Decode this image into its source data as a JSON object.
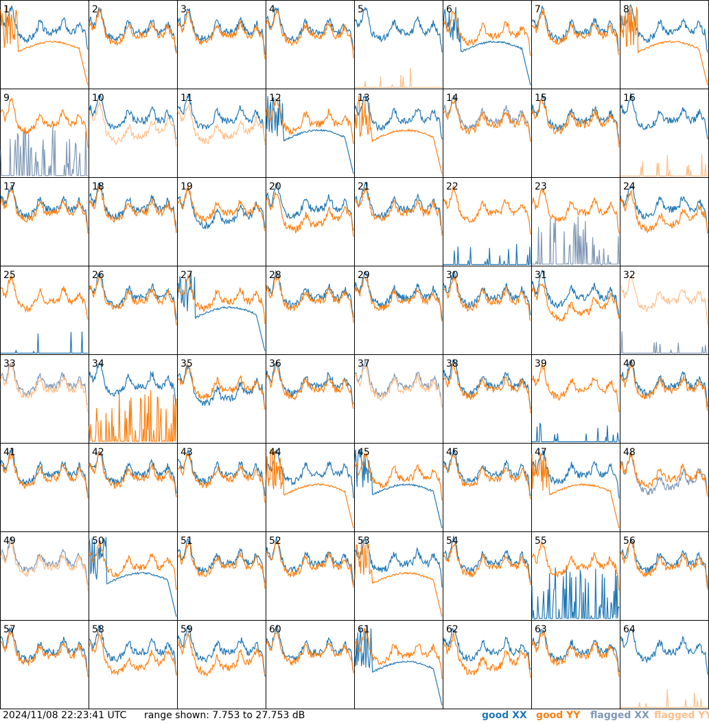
{
  "colors": {
    "good_xx": "#1f77b4",
    "good_yy": "#ff7f0e",
    "flagged_xx": "#7f97b4",
    "flagged_yy": "#ffbf8a",
    "frame": "#000000",
    "background": "#ffffff"
  },
  "footer": {
    "timestamp": "2024/11/08 22:23:41 UTC",
    "range_text": "range shown: 7.753 to 27.753 dB",
    "legend": {
      "good_xx": "good XX",
      "good_yy": "good YY",
      "flagged_xx": "flagged XX",
      "flagged_yy": "flagged YY"
    }
  },
  "chart_data": {
    "type": "line",
    "layout": "8x8 small multiples",
    "ylim": [
      7.753,
      27.753
    ],
    "yunit": "dB",
    "series_names": [
      "good XX",
      "good YY",
      "flagged XX",
      "flagged YY"
    ],
    "panels": [
      {
        "label": "1",
        "xx": "normal",
        "yy": "rolloff",
        "xx_flagged": false,
        "yy_flagged": false
      },
      {
        "label": "2",
        "xx": "normal",
        "yy": "normal",
        "xx_flagged": false,
        "yy_flagged": false
      },
      {
        "label": "3",
        "xx": "normal",
        "yy": "normal",
        "xx_flagged": false,
        "yy_flagged": false
      },
      {
        "label": "4",
        "xx": "normal",
        "yy": "normal",
        "xx_flagged": false,
        "yy_flagged": false
      },
      {
        "label": "5",
        "xx": "normal",
        "yy": "dead",
        "xx_flagged": false,
        "yy_flagged": true
      },
      {
        "label": "6",
        "xx": "rolloff",
        "yy": "normal",
        "xx_flagged": false,
        "yy_flagged": false
      },
      {
        "label": "7",
        "xx": "normal",
        "yy": "normal",
        "xx_flagged": false,
        "yy_flagged": false
      },
      {
        "label": "8",
        "xx": "normal",
        "yy": "rolloff",
        "xx_flagged": false,
        "yy_flagged": false
      },
      {
        "label": "9",
        "xx": "spiky",
        "yy": "normal",
        "xx_flagged": true,
        "yy_flagged": false
      },
      {
        "label": "10",
        "xx": "normal",
        "yy": "low",
        "xx_flagged": false,
        "yy_flagged": true
      },
      {
        "label": "11",
        "xx": "normal",
        "yy": "low",
        "xx_flagged": false,
        "yy_flagged": true
      },
      {
        "label": "12",
        "xx": "rolloff",
        "yy": "normal",
        "xx_flagged": false,
        "yy_flagged": false
      },
      {
        "label": "13",
        "xx": "normal",
        "yy": "rolloff",
        "xx_flagged": false,
        "yy_flagged": false
      },
      {
        "label": "14",
        "xx": "normal",
        "yy": "normal",
        "xx_flagged": true,
        "yy_flagged": false
      },
      {
        "label": "15",
        "xx": "normal",
        "yy": "normal",
        "xx_flagged": false,
        "yy_flagged": false
      },
      {
        "label": "16",
        "xx": "normal",
        "yy": "dead",
        "xx_flagged": false,
        "yy_flagged": true
      },
      {
        "label": "17",
        "xx": "normal",
        "yy": "normal",
        "xx_flagged": false,
        "yy_flagged": false
      },
      {
        "label": "18",
        "xx": "normal",
        "yy": "normal",
        "xx_flagged": false,
        "yy_flagged": false
      },
      {
        "label": "19",
        "xx": "low",
        "yy": "normal",
        "xx_flagged": false,
        "yy_flagged": false
      },
      {
        "label": "20",
        "xx": "normal",
        "yy": "low",
        "xx_flagged": false,
        "yy_flagged": false
      },
      {
        "label": "21",
        "xx": "normal",
        "yy": "normal",
        "xx_flagged": false,
        "yy_flagged": false
      },
      {
        "label": "22",
        "xx": "dead",
        "yy": "normal",
        "xx_flagged": false,
        "yy_flagged": false
      },
      {
        "label": "23",
        "xx": "spiky",
        "yy": "normal",
        "xx_flagged": true,
        "yy_flagged": false
      },
      {
        "label": "24",
        "xx": "normal",
        "yy": "low",
        "xx_flagged": false,
        "yy_flagged": false
      },
      {
        "label": "25",
        "xx": "dead",
        "yy": "normal",
        "xx_flagged": false,
        "yy_flagged": false
      },
      {
        "label": "26",
        "xx": "normal",
        "yy": "normal",
        "xx_flagged": false,
        "yy_flagged": false
      },
      {
        "label": "27",
        "xx": "rolloff",
        "yy": "normal",
        "xx_flagged": false,
        "yy_flagged": false
      },
      {
        "label": "28",
        "xx": "normal",
        "yy": "normal",
        "xx_flagged": false,
        "yy_flagged": false
      },
      {
        "label": "29",
        "xx": "normal",
        "yy": "normal",
        "xx_flagged": false,
        "yy_flagged": false
      },
      {
        "label": "30",
        "xx": "normal",
        "yy": "normal",
        "xx_flagged": false,
        "yy_flagged": false
      },
      {
        "label": "31",
        "xx": "normal",
        "yy": "low",
        "xx_flagged": false,
        "yy_flagged": false
      },
      {
        "label": "32",
        "xx": "dead",
        "yy": "normal",
        "xx_flagged": true,
        "yy_flagged": true
      },
      {
        "label": "33",
        "xx": "normal",
        "yy": "normal",
        "xx_flagged": true,
        "yy_flagged": true
      },
      {
        "label": "34",
        "xx": "normal",
        "yy": "spiky",
        "xx_flagged": false,
        "yy_flagged": false
      },
      {
        "label": "35",
        "xx": "low",
        "yy": "normal",
        "xx_flagged": false,
        "yy_flagged": false
      },
      {
        "label": "36",
        "xx": "normal",
        "yy": "normal",
        "xx_flagged": false,
        "yy_flagged": false
      },
      {
        "label": "37",
        "xx": "normal",
        "yy": "normal",
        "xx_flagged": true,
        "yy_flagged": true
      },
      {
        "label": "38",
        "xx": "normal",
        "yy": "normal",
        "xx_flagged": false,
        "yy_flagged": false
      },
      {
        "label": "39",
        "xx": "dead",
        "yy": "normal",
        "xx_flagged": false,
        "yy_flagged": false
      },
      {
        "label": "40",
        "xx": "normal",
        "yy": "normal",
        "xx_flagged": false,
        "yy_flagged": false
      },
      {
        "label": "41",
        "xx": "normal",
        "yy": "normal",
        "xx_flagged": false,
        "yy_flagged": false
      },
      {
        "label": "42",
        "xx": "normal",
        "yy": "normal",
        "xx_flagged": false,
        "yy_flagged": false
      },
      {
        "label": "43",
        "xx": "normal",
        "yy": "normal",
        "xx_flagged": false,
        "yy_flagged": false
      },
      {
        "label": "44",
        "xx": "normal",
        "yy": "rolloff",
        "xx_flagged": false,
        "yy_flagged": false
      },
      {
        "label": "45",
        "xx": "rolloff",
        "yy": "normal",
        "xx_flagged": false,
        "yy_flagged": false
      },
      {
        "label": "46",
        "xx": "normal",
        "yy": "normal",
        "xx_flagged": false,
        "yy_flagged": false
      },
      {
        "label": "47",
        "xx": "normal",
        "yy": "rolloff",
        "xx_flagged": false,
        "yy_flagged": false
      },
      {
        "label": "48",
        "xx": "low",
        "yy": "normal",
        "xx_flagged": true,
        "yy_flagged": false
      },
      {
        "label": "49",
        "xx": "normal",
        "yy": "normal",
        "xx_flagged": true,
        "yy_flagged": true
      },
      {
        "label": "50",
        "xx": "rolloff",
        "yy": "normal",
        "xx_flagged": false,
        "yy_flagged": false
      },
      {
        "label": "51",
        "xx": "normal",
        "yy": "normal",
        "xx_flagged": false,
        "yy_flagged": false
      },
      {
        "label": "52",
        "xx": "normal",
        "yy": "normal",
        "xx_flagged": false,
        "yy_flagged": false
      },
      {
        "label": "53",
        "xx": "normal",
        "yy": "rolloff",
        "xx_flagged": false,
        "yy_flagged": false
      },
      {
        "label": "54",
        "xx": "normal",
        "yy": "normal",
        "xx_flagged": false,
        "yy_flagged": false
      },
      {
        "label": "55",
        "xx": "spiky",
        "yy": "normal",
        "xx_flagged": false,
        "yy_flagged": false
      },
      {
        "label": "56",
        "xx": "normal",
        "yy": "normal",
        "xx_flagged": false,
        "yy_flagged": false
      },
      {
        "label": "57",
        "xx": "normal",
        "yy": "normal",
        "xx_flagged": false,
        "yy_flagged": false
      },
      {
        "label": "58",
        "xx": "normal",
        "yy": "low",
        "xx_flagged": false,
        "yy_flagged": false
      },
      {
        "label": "59",
        "xx": "normal",
        "yy": "low",
        "xx_flagged": false,
        "yy_flagged": false
      },
      {
        "label": "60",
        "xx": "normal",
        "yy": "normal",
        "xx_flagged": false,
        "yy_flagged": false
      },
      {
        "label": "61",
        "xx": "rolloff",
        "yy": "normal",
        "xx_flagged": false,
        "yy_flagged": false
      },
      {
        "label": "62",
        "xx": "normal",
        "yy": "low",
        "xx_flagged": false,
        "yy_flagged": false
      },
      {
        "label": "63",
        "xx": "normal",
        "yy": "normal",
        "xx_flagged": false,
        "yy_flagged": false
      },
      {
        "label": "64",
        "xx": "normal",
        "yy": "dead",
        "xx_flagged": false,
        "yy_flagged": true
      }
    ]
  }
}
